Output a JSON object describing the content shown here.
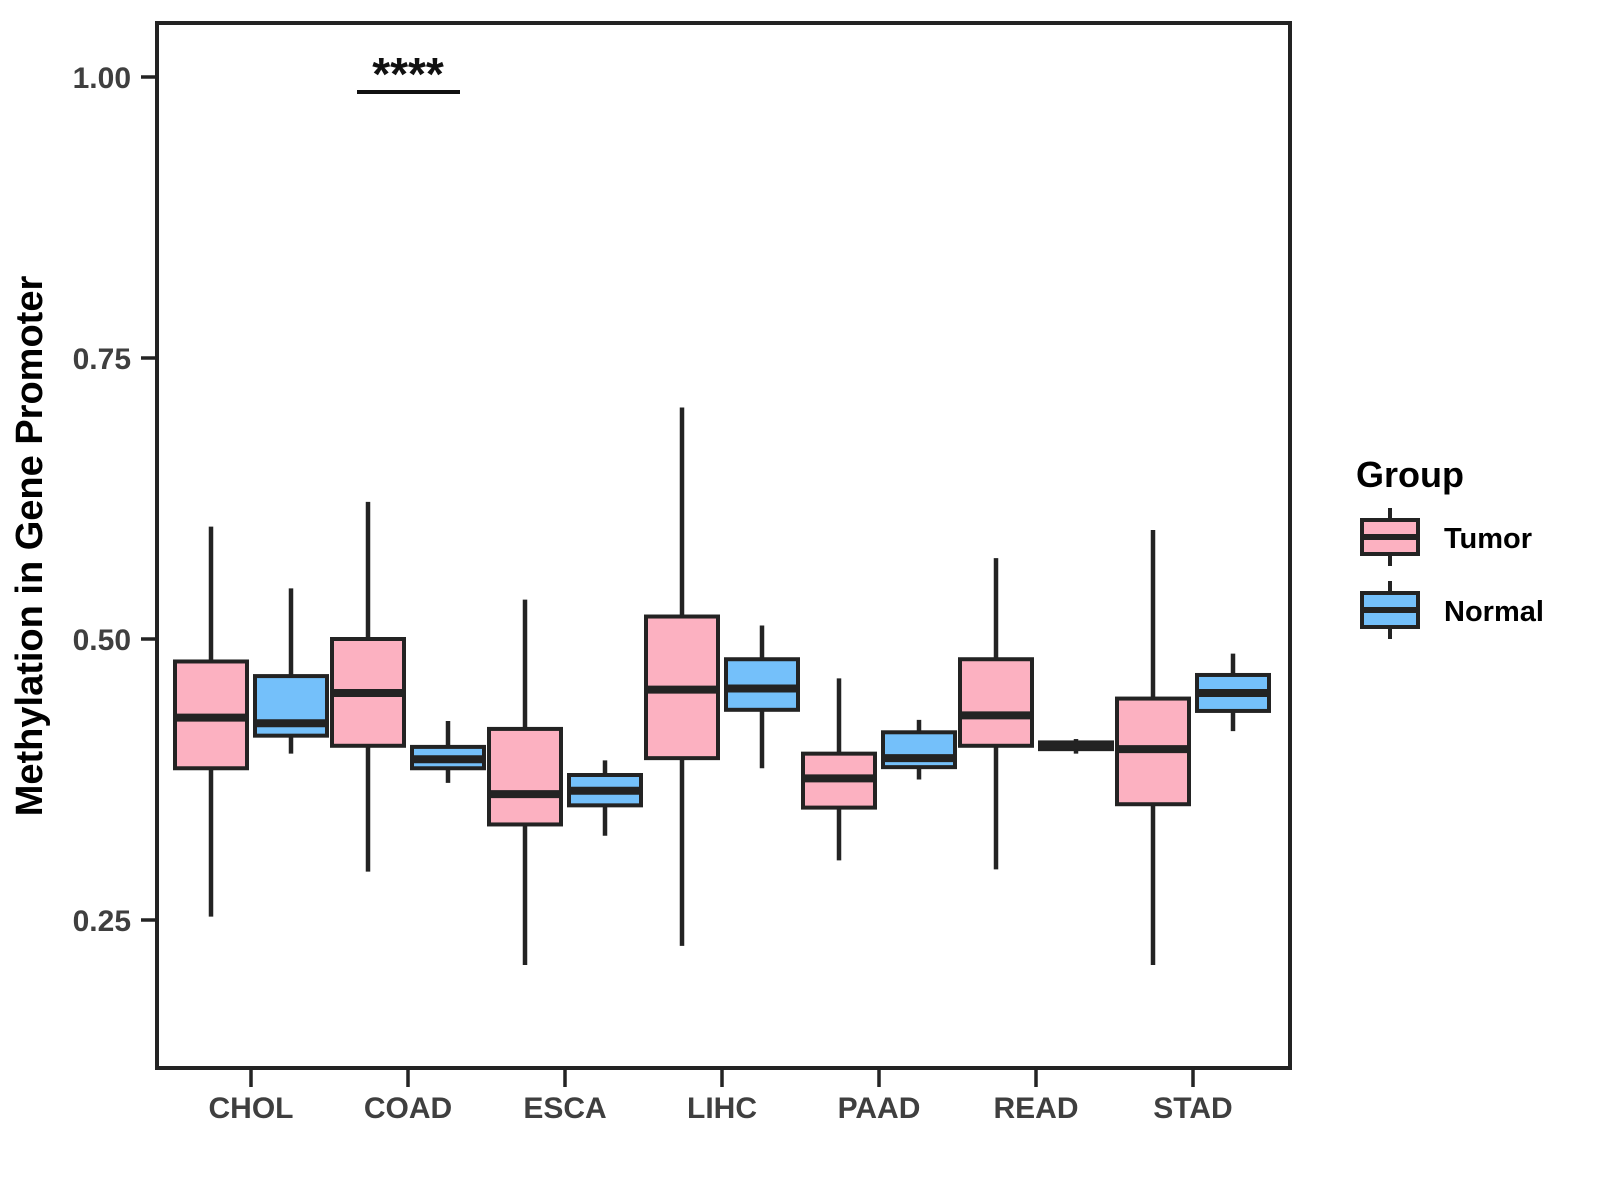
{
  "figure": {
    "y_axis_title": "Methylation in Gene Promoter",
    "background": "#ffffff"
  },
  "legend": {
    "title": "Group",
    "position": "right",
    "items": [
      {
        "label": "Tumor",
        "fill": "#FCB1C1"
      },
      {
        "label": "Normal",
        "fill": "#74C0FA"
      }
    ]
  },
  "chart_data": {
    "type": "boxplot",
    "title": "",
    "xlabel": "",
    "ylabel": "Methylation in Gene Promoter",
    "grid": false,
    "legend_position": "right",
    "categories": [
      "CHOL",
      "COAD",
      "ESCA",
      "LIHC",
      "PAAD",
      "READ",
      "STAD"
    ],
    "groups": [
      "Tumor",
      "Normal"
    ],
    "colors": {
      "Tumor": "#FCB1C1",
      "Normal": "#74C0FA",
      "stroke": "#232323"
    },
    "ylim": [
      0.12,
      1.05
    ],
    "y_ticks": [
      1.0,
      0.75,
      0.5,
      0.25
    ],
    "y_tick_labels": [
      "1.00",
      "0.75",
      "0.50",
      "0.25"
    ],
    "series": [
      {
        "name": "Tumor",
        "boxes": [
          {
            "category": "CHOL",
            "min": 0.253,
            "q1": 0.385,
            "median": 0.43,
            "q3": 0.48,
            "max": 0.6
          },
          {
            "category": "COAD",
            "min": 0.293,
            "q1": 0.405,
            "median": 0.452,
            "q3": 0.5,
            "max": 0.622
          },
          {
            "category": "ESCA",
            "min": 0.21,
            "q1": 0.335,
            "median": 0.362,
            "q3": 0.42,
            "max": 0.535
          },
          {
            "category": "LIHC",
            "min": 0.227,
            "q1": 0.394,
            "median": 0.455,
            "q3": 0.52,
            "max": 0.706
          },
          {
            "category": "PAAD",
            "min": 0.303,
            "q1": 0.35,
            "median": 0.376,
            "q3": 0.398,
            "max": 0.465
          },
          {
            "category": "READ",
            "min": 0.295,
            "q1": 0.405,
            "median": 0.432,
            "q3": 0.482,
            "max": 0.572
          },
          {
            "category": "STAD",
            "min": 0.21,
            "q1": 0.353,
            "median": 0.402,
            "q3": 0.447,
            "max": 0.597
          }
        ]
      },
      {
        "name": "Normal",
        "boxes": [
          {
            "category": "CHOL",
            "min": 0.398,
            "q1": 0.414,
            "median": 0.425,
            "q3": 0.467,
            "max": 0.545
          },
          {
            "category": "COAD",
            "min": 0.372,
            "q1": 0.385,
            "median": 0.393,
            "q3": 0.404,
            "max": 0.427
          },
          {
            "category": "ESCA",
            "min": 0.325,
            "q1": 0.352,
            "median": 0.365,
            "q3": 0.379,
            "max": 0.392
          },
          {
            "category": "LIHC",
            "min": 0.385,
            "q1": 0.437,
            "median": 0.456,
            "q3": 0.482,
            "max": 0.512
          },
          {
            "category": "PAAD",
            "min": 0.375,
            "q1": 0.386,
            "median": 0.394,
            "q3": 0.417,
            "max": 0.428
          },
          {
            "category": "READ",
            "min": 0.398,
            "q1": 0.402,
            "median": 0.405,
            "q3": 0.408,
            "max": 0.411
          },
          {
            "category": "STAD",
            "min": 0.418,
            "q1": 0.436,
            "median": 0.452,
            "q3": 0.468,
            "max": 0.487
          }
        ]
      }
    ],
    "significance": [
      {
        "category": "COAD",
        "label": "****"
      }
    ]
  }
}
